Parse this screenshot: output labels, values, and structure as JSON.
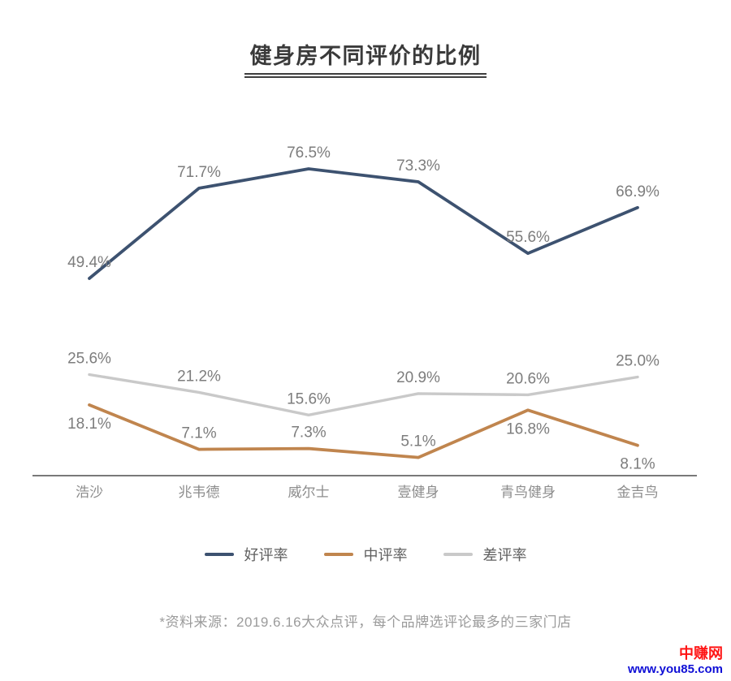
{
  "page": {
    "title": "健身房不同评价的比例",
    "footnote": "*资料来源：2019.6.16大众点评，每个品牌选评论最多的三家门店",
    "watermark": {
      "name": "中赚网",
      "url": "www.you85.com",
      "name_color": "#ff1414",
      "url_color": "#0f0fd6"
    }
  },
  "chart_data": {
    "type": "line",
    "title": "健身房不同评价的比例",
    "categories": [
      "浩沙",
      "兆韦德",
      "威尔士",
      "壹健身",
      "青鸟健身",
      "金吉鸟"
    ],
    "series": [
      {
        "name": "好评率",
        "color": "#3d5270",
        "values": [
          49.4,
          71.7,
          76.5,
          73.3,
          55.6,
          66.9
        ],
        "label_sides": [
          "above",
          "above",
          "above",
          "above",
          "above",
          "above"
        ]
      },
      {
        "name": "中评率",
        "color": "#c0854e",
        "values": [
          18.1,
          7.1,
          7.3,
          5.1,
          16.8,
          8.1
        ],
        "label_sides": [
          "below",
          "above",
          "above",
          "above",
          "below",
          "below"
        ]
      },
      {
        "name": "差评率",
        "color": "#c9c9c9",
        "values": [
          25.6,
          21.2,
          15.6,
          20.9,
          20.6,
          25.0
        ],
        "label_sides": [
          "above",
          "above",
          "above",
          "above",
          "above",
          "above"
        ]
      }
    ],
    "ylim": [
      0,
      85
    ],
    "grid": false,
    "y_axis_visible": false,
    "x_axis_line_color": "#4d4d4d",
    "x_tick_color": "#8c8c8c",
    "data_labels": true,
    "data_label_color": "#7d7d7d",
    "label_format": "{value}%",
    "legend_position": "bottom"
  }
}
